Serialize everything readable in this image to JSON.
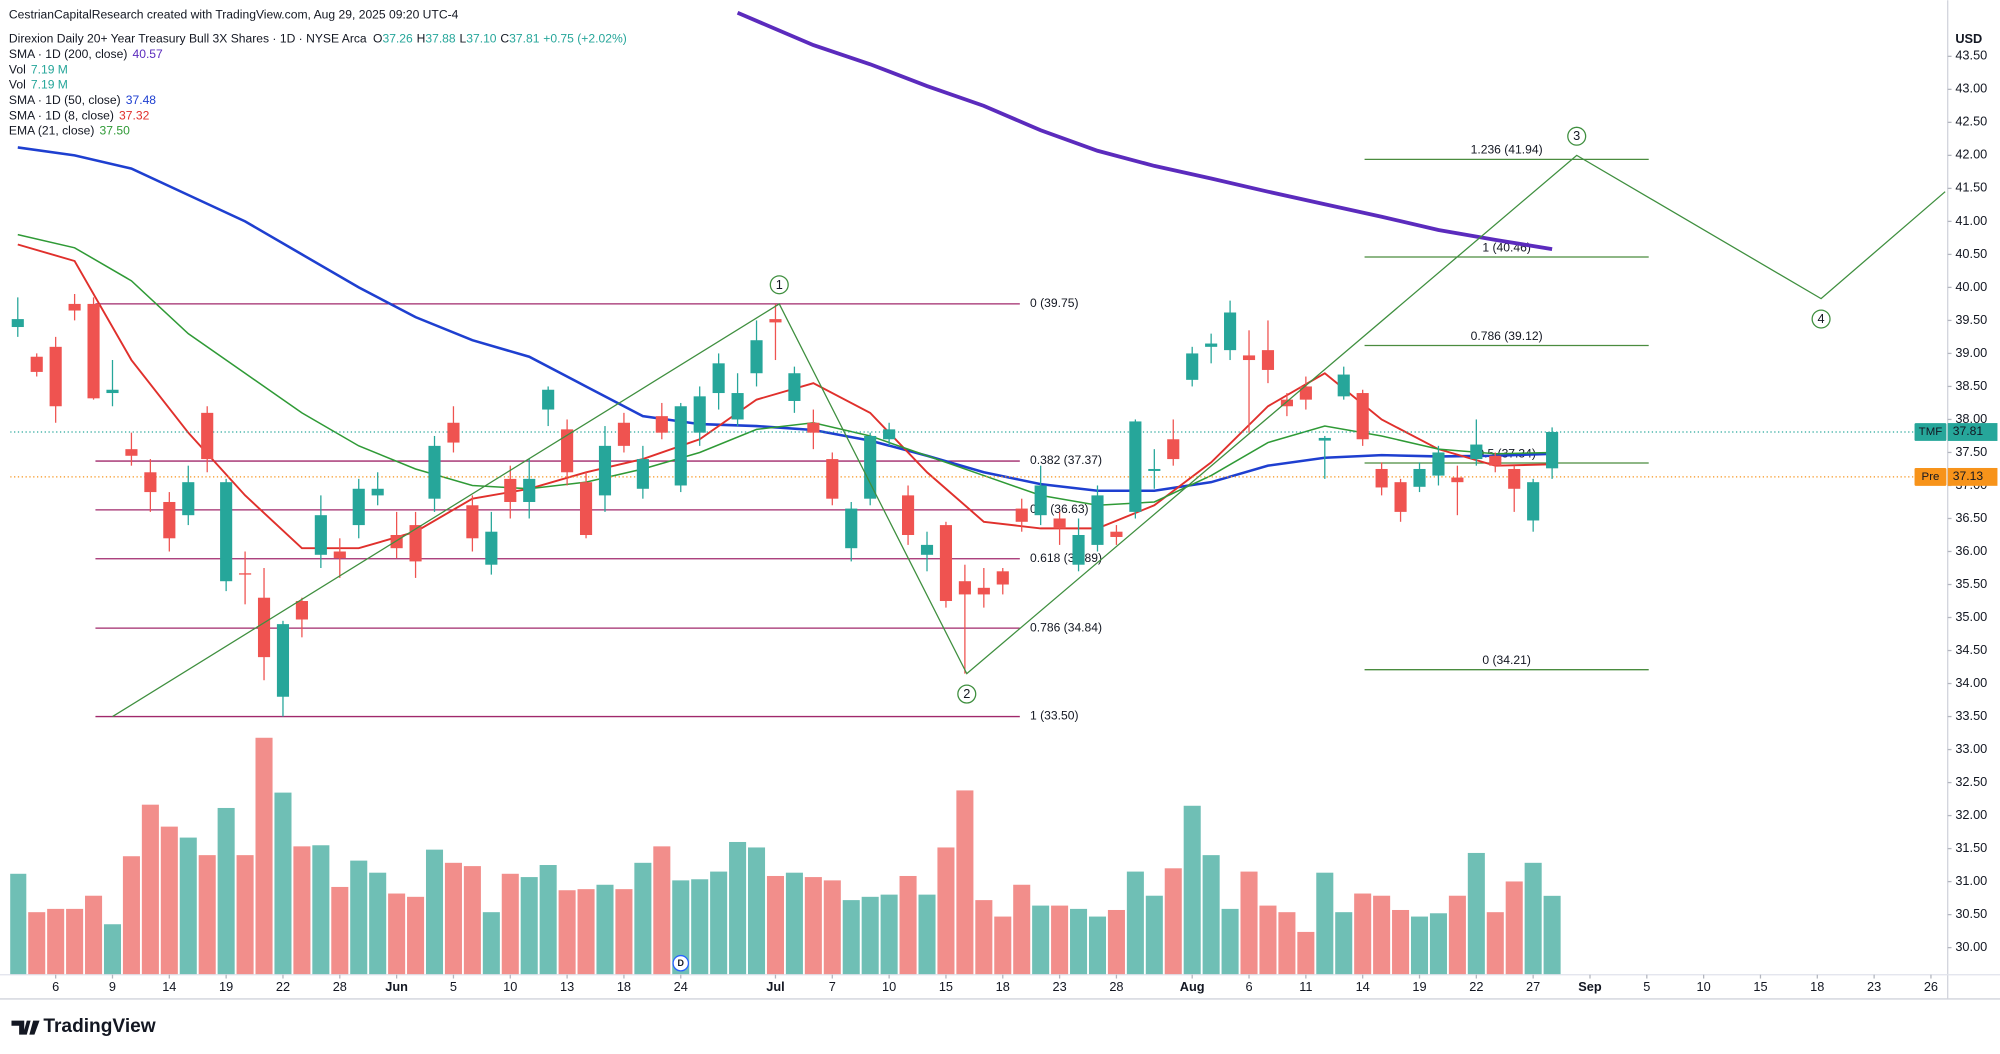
{
  "chart_data": {
    "type": "candlestick",
    "credit": "CestrianCapitalResearch created with TradingView.com, Aug 29, 2025 09:20 UTC-4",
    "title": "Direxion Daily 20+ Year Treasury Bull 3X Shares · 1D · NYSE Arca",
    "ohlc_legend": [
      {
        "label": "O",
        "value": "37.26"
      },
      {
        "label": "H",
        "value": "37.88"
      },
      {
        "label": "L",
        "value": "37.10"
      },
      {
        "label": "C",
        "value": "37.81"
      }
    ],
    "change": "+0.75 (+2.02%)",
    "currency": "USD",
    "logo": "TradingView",
    "up_color": "#26a69a",
    "down_color": "#ef5350",
    "volume_up_color": "#6fbfb5",
    "volume_down_color": "#f28e8b",
    "open": [
      39.4,
      38.95,
      39.1,
      39.75,
      39.75,
      38.4,
      37.55,
      37.2,
      36.75,
      36.55,
      38.1,
      35.55,
      35.67,
      35.3,
      33.8,
      35.25,
      35.95,
      36.0,
      36.4,
      36.85,
      36.25,
      36.4,
      36.8,
      37.95,
      36.7,
      35.8,
      37.1,
      36.75,
      38.15,
      37.85,
      37.05,
      36.85,
      37.95,
      36.95,
      38.05,
      37.0,
      37.8,
      38.4,
      38.0,
      38.7,
      39.52,
      38.28,
      37.95,
      37.4,
      36.05,
      36.8,
      37.7,
      36.85,
      35.95,
      36.4,
      35.55,
      35.45,
      35.7,
      36.65,
      36.55,
      36.5,
      35.8,
      36.1,
      36.3,
      36.6,
      37.22,
      37.7,
      38.6,
      39.1,
      39.05,
      38.97,
      39.05,
      38.3,
      38.5,
      37.68,
      38.35,
      38.4,
      37.25,
      37.05,
      36.98,
      37.15,
      37.12,
      37.4,
      37.45,
      37.25,
      36.47,
      37.26
    ],
    "high": [
      39.85,
      39.0,
      39.25,
      39.9,
      39.85,
      38.9,
      37.8,
      37.4,
      36.9,
      37.3,
      38.2,
      37.1,
      36.0,
      35.75,
      34.95,
      35.3,
      36.85,
      36.2,
      37.1,
      37.2,
      36.6,
      36.6,
      37.75,
      38.2,
      36.85,
      36.6,
      37.3,
      37.4,
      38.5,
      38.0,
      37.2,
      37.9,
      38.1,
      37.6,
      38.25,
      38.25,
      38.5,
      39.0,
      38.7,
      39.5,
      39.75,
      38.8,
      38.15,
      37.5,
      36.75,
      37.8,
      37.95,
      37.0,
      36.3,
      36.45,
      35.8,
      35.75,
      35.75,
      36.8,
      37.3,
      36.6,
      36.5,
      37.0,
      36.4,
      38.0,
      37.55,
      38.0,
      39.1,
      39.3,
      39.8,
      39.35,
      39.5,
      38.4,
      38.65,
      37.75,
      38.8,
      38.45,
      37.35,
      37.1,
      37.35,
      37.6,
      37.3,
      38.0,
      37.5,
      37.3,
      37.1,
      37.88
    ],
    "low": [
      39.25,
      38.65,
      37.95,
      39.5,
      38.3,
      38.2,
      37.3,
      36.6,
      36.0,
      36.4,
      37.2,
      35.4,
      35.2,
      34.05,
      33.5,
      34.7,
      35.75,
      35.6,
      36.2,
      36.7,
      35.9,
      35.6,
      36.6,
      37.5,
      36.0,
      35.65,
      36.5,
      36.5,
      37.9,
      37.0,
      36.2,
      36.6,
      37.5,
      36.8,
      37.7,
      36.9,
      37.6,
      38.15,
      37.9,
      38.5,
      38.9,
      38.1,
      37.55,
      36.7,
      35.85,
      36.7,
      37.6,
      36.1,
      35.7,
      35.15,
      34.15,
      35.15,
      35.35,
      36.3,
      36.4,
      36.1,
      35.7,
      36.0,
      36.1,
      36.5,
      36.95,
      37.3,
      38.5,
      38.85,
      38.9,
      37.8,
      38.55,
      38.05,
      38.15,
      37.1,
      38.3,
      37.6,
      36.85,
      36.45,
      36.9,
      37.0,
      36.55,
      37.3,
      37.2,
      36.6,
      36.3,
      37.1
    ],
    "close": [
      39.52,
      38.72,
      38.2,
      39.65,
      38.32,
      38.45,
      37.45,
      36.9,
      36.2,
      37.05,
      37.4,
      37.05,
      35.65,
      34.4,
      34.9,
      34.97,
      36.55,
      35.9,
      36.95,
      36.95,
      36.05,
      35.85,
      37.6,
      37.65,
      36.2,
      36.3,
      36.75,
      37.1,
      38.45,
      37.2,
      36.25,
      37.6,
      37.6,
      37.4,
      37.8,
      38.2,
      38.35,
      38.85,
      38.4,
      39.2,
      39.47,
      38.7,
      37.8,
      36.8,
      36.65,
      37.75,
      37.85,
      36.25,
      36.1,
      35.25,
      35.35,
      35.35,
      35.5,
      36.45,
      37.0,
      36.35,
      36.25,
      36.85,
      36.22,
      37.97,
      37.25,
      37.4,
      39.0,
      39.15,
      39.62,
      38.9,
      38.75,
      38.2,
      38.3,
      37.72,
      38.68,
      37.7,
      36.97,
      36.6,
      37.25,
      37.5,
      37.05,
      37.62,
      37.3,
      36.95,
      37.05,
      37.81
    ],
    "volume": [
      9.2,
      5.7,
      6.0,
      6.0,
      7.2,
      4.6,
      10.8,
      15.5,
      13.5,
      12.5,
      10.9,
      15.2,
      10.9,
      21.6,
      16.6,
      11.7,
      11.8,
      8.0,
      10.4,
      9.3,
      7.4,
      7.1,
      11.4,
      10.2,
      9.9,
      5.7,
      9.2,
      8.9,
      10.0,
      7.7,
      7.8,
      8.2,
      7.8,
      10.2,
      11.7,
      8.6,
      8.7,
      9.4,
      12.1,
      11.6,
      9.0,
      9.3,
      8.9,
      8.6,
      6.8,
      7.1,
      7.3,
      9.0,
      7.3,
      11.6,
      16.8,
      6.8,
      5.3,
      8.2,
      6.3,
      6.3,
      6.0,
      5.3,
      5.9,
      9.4,
      7.2,
      9.7,
      15.4,
      10.9,
      6.0,
      9.4,
      6.3,
      5.7,
      3.9,
      9.3,
      5.7,
      7.4,
      7.2,
      5.9,
      5.3,
      5.6,
      7.2,
      11.1,
      5.7,
      8.5,
      10.2,
      7.19
    ],
    "vol_ylim": [
      0,
      25
    ],
    "indicators": [
      {
        "name": "SMA · 1D (200, close)",
        "value_text": "40.57",
        "color": "#5b2bbd",
        "width": 3,
        "x": [
          38,
          42,
          45,
          48,
          51,
          54,
          57,
          60,
          63,
          66,
          69,
          72,
          75,
          78,
          81
        ],
        "values": [
          44.16,
          43.67,
          43.38,
          43.05,
          42.75,
          42.38,
          42.07,
          41.84,
          41.65,
          41.45,
          41.26,
          41.07,
          40.87,
          40.72,
          40.58
        ]
      },
      {
        "name": "Vol",
        "value_text": "7.19 M",
        "color": "#26a69a"
      },
      {
        "name": "Vol",
        "value_text": "7.19 M",
        "color": "#26a69a"
      },
      {
        "name": "SMA · 1D (50, close)",
        "value_text": "37.48",
        "color": "#1e3fd0",
        "width": 2,
        "x": [
          0,
          3,
          6,
          9,
          12,
          15,
          18,
          21,
          24,
          27,
          30,
          33,
          36,
          39,
          42,
          45,
          48,
          51,
          54,
          57,
          60,
          63,
          66,
          69,
          72,
          75,
          78,
          81
        ],
        "values": [
          42.12,
          42.0,
          41.8,
          41.4,
          41.0,
          40.5,
          40.0,
          39.55,
          39.2,
          38.95,
          38.5,
          38.05,
          37.93,
          37.9,
          37.84,
          37.68,
          37.45,
          37.2,
          37.02,
          36.92,
          36.92,
          37.05,
          37.3,
          37.42,
          37.46,
          37.44,
          37.45,
          37.48
        ]
      },
      {
        "name": "SMA · 1D (8, close)",
        "value_text": "37.32",
        "color": "#e0302c",
        "width": 1.5,
        "x": [
          0,
          3,
          6,
          9,
          12,
          15,
          18,
          21,
          24,
          27,
          30,
          33,
          36,
          39,
          42,
          45,
          48,
          51,
          54,
          57,
          60,
          63,
          66,
          69,
          72,
          75,
          78,
          81
        ],
        "values": [
          40.65,
          40.4,
          38.9,
          37.8,
          36.85,
          36.05,
          36.05,
          36.3,
          36.8,
          36.95,
          37.2,
          37.4,
          37.7,
          38.3,
          38.55,
          38.1,
          37.2,
          36.45,
          36.35,
          36.35,
          36.7,
          37.35,
          38.2,
          38.7,
          38.0,
          37.55,
          37.3,
          37.32
        ]
      },
      {
        "name": "EMA (21, close)",
        "value_text": "37.50",
        "color": "#2f9a36",
        "width": 1.2,
        "x": [
          0,
          3,
          6,
          9,
          12,
          15,
          18,
          21,
          24,
          27,
          30,
          33,
          36,
          39,
          42,
          45,
          48,
          51,
          54,
          57,
          60,
          63,
          66,
          69,
          72,
          75,
          78,
          81
        ],
        "values": [
          40.8,
          40.6,
          40.1,
          39.3,
          38.7,
          38.1,
          37.6,
          37.25,
          37.0,
          36.95,
          37.05,
          37.25,
          37.5,
          37.85,
          37.95,
          37.75,
          37.45,
          37.15,
          36.85,
          36.7,
          36.75,
          37.15,
          37.65,
          37.9,
          37.75,
          37.55,
          37.48,
          37.5
        ]
      }
    ],
    "fib_sets": [
      {
        "color": "#a0286b",
        "label_position": "right",
        "x": [
          4.1,
          52.9
        ],
        "levels": [
          {
            "price": 39.75,
            "label": "0 (39.75)"
          },
          {
            "price": 37.37,
            "label": "0.382 (37.37)"
          },
          {
            "price": 36.63,
            "label": "0.5 (36.63)"
          },
          {
            "price": 35.89,
            "label": "0.618 (35.89)"
          },
          {
            "price": 34.84,
            "label": "0.786 (34.84)"
          },
          {
            "price": 33.5,
            "label": "1 (33.50)"
          }
        ]
      },
      {
        "color": "#4a8c3f",
        "label_position": "above",
        "x": [
          71.1,
          86.1
        ],
        "levels": [
          {
            "price": 41.94,
            "label": "1.236 (41.94)"
          },
          {
            "price": 40.46,
            "label": "1 (40.46)"
          },
          {
            "price": 39.12,
            "label": "0.786 (39.12)"
          },
          {
            "price": 37.34,
            "label": "0.5 (37.34)"
          },
          {
            "price": 34.21,
            "label": "0 (34.21)"
          }
        ]
      }
    ],
    "waves": {
      "color": "#3f8f3f",
      "x": [
        5.0,
        40.2,
        50.1,
        82.3,
        95.2,
        101.75
      ],
      "values": [
        33.5,
        39.75,
        34.15,
        42.0,
        39.83,
        41.45
      ],
      "labels": [
        null,
        "1",
        "2",
        "3",
        "4",
        null
      ]
    },
    "price_tags": [
      {
        "name": "TMF",
        "value": 37.81,
        "color": "#26a69a"
      },
      {
        "name": "Pre",
        "value": 37.13,
        "color": "#f7931a"
      }
    ],
    "events": [
      {
        "label": "D",
        "x": 35
      }
    ],
    "xlim": [
      -0.4,
      101.75
    ],
    "xticks": [
      {
        "value": 2,
        "label": "6"
      },
      {
        "value": 5,
        "label": "9"
      },
      {
        "value": 8,
        "label": "14"
      },
      {
        "value": 11,
        "label": "19"
      },
      {
        "value": 14,
        "label": "22"
      },
      {
        "value": 17,
        "label": "28"
      },
      {
        "value": 20,
        "label": "Jun"
      },
      {
        "value": 23,
        "label": "5"
      },
      {
        "value": 26,
        "label": "10"
      },
      {
        "value": 29,
        "label": "13"
      },
      {
        "value": 32,
        "label": "18"
      },
      {
        "value": 35,
        "label": "24"
      },
      {
        "value": 40,
        "label": "Jul"
      },
      {
        "value": 43,
        "label": "7"
      },
      {
        "value": 46,
        "label": "10"
      },
      {
        "value": 49,
        "label": "15"
      },
      {
        "value": 52,
        "label": "18"
      },
      {
        "value": 55,
        "label": "23"
      },
      {
        "value": 58,
        "label": "28"
      },
      {
        "value": 62,
        "label": "Aug"
      },
      {
        "value": 65,
        "label": "6"
      },
      {
        "value": 68,
        "label": "11"
      },
      {
        "value": 71,
        "label": "14"
      },
      {
        "value": 74,
        "label": "19"
      },
      {
        "value": 77,
        "label": "22"
      },
      {
        "value": 80,
        "label": "27"
      },
      {
        "value": 83,
        "label": "Sep"
      },
      {
        "value": 86,
        "label": "5"
      },
      {
        "value": 89,
        "label": "10"
      },
      {
        "value": 92,
        "label": "15"
      },
      {
        "value": 95,
        "label": "18"
      },
      {
        "value": 98,
        "label": "23"
      },
      {
        "value": 101,
        "label": "26"
      }
    ],
    "ylim": [
      29.59,
      44.35
    ],
    "yticks": [
      {
        "value": 30,
        "label": "30.00"
      },
      {
        "value": 30.5,
        "label": "30.50"
      },
      {
        "value": 31,
        "label": "31.00"
      },
      {
        "value": 31.5,
        "label": "31.50"
      },
      {
        "value": 32,
        "label": "32.00"
      },
      {
        "value": 32.5,
        "label": "32.50"
      },
      {
        "value": 33,
        "label": "33.00"
      },
      {
        "value": 33.5,
        "label": "33.50"
      },
      {
        "value": 34,
        "label": "34.00"
      },
      {
        "value": 34.5,
        "label": "34.50"
      },
      {
        "value": 35,
        "label": "35.00"
      },
      {
        "value": 35.5,
        "label": "35.50"
      },
      {
        "value": 36,
        "label": "36.00"
      },
      {
        "value": 36.5,
        "label": "36.50"
      },
      {
        "value": 37,
        "label": "37.00"
      },
      {
        "value": 37.5,
        "label": "37.50"
      },
      {
        "value": 38,
        "label": "38.00"
      },
      {
        "value": 38.5,
        "label": "38.50"
      },
      {
        "value": 39,
        "label": "39.00"
      },
      {
        "value": 39.5,
        "label": "39.50"
      },
      {
        "value": 40,
        "label": "40.00"
      },
      {
        "value": 40.5,
        "label": "40.50"
      },
      {
        "value": 41,
        "label": "41.00"
      },
      {
        "value": 41.5,
        "label": "41.50"
      },
      {
        "value": 42,
        "label": "42.00"
      },
      {
        "value": 42.5,
        "label": "42.50"
      },
      {
        "value": 43,
        "label": "43.00"
      },
      {
        "value": 43.5,
        "label": "43.50"
      }
    ]
  }
}
